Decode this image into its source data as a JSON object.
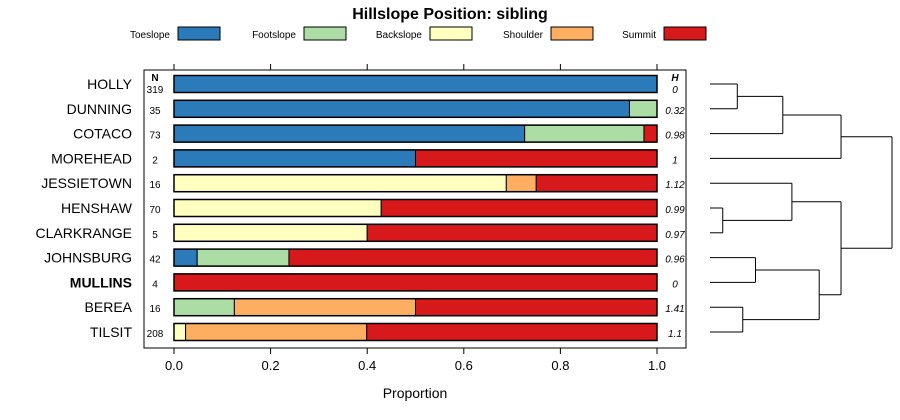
{
  "chart_data": {
    "type": "bar",
    "stacked": true,
    "orientation": "horizontal",
    "title": "Hillslope Position: sibling",
    "xlabel": "Proportion",
    "xlim": [
      0,
      1
    ],
    "xticks": [
      "0.0",
      "0.2",
      "0.4",
      "0.6",
      "0.8",
      "1.0"
    ],
    "n_header": "N",
    "h_header": "H",
    "legend_placement": "top",
    "series": [
      {
        "name": "Toeslope",
        "color": "#2b7bba"
      },
      {
        "name": "Footslope",
        "color": "#abdda4"
      },
      {
        "name": "Backslope",
        "color": "#ffffbf"
      },
      {
        "name": "Shoulder",
        "color": "#fdae61"
      },
      {
        "name": "Summit",
        "color": "#d7191c"
      }
    ],
    "rows": [
      {
        "name": "HOLLY",
        "bold": false,
        "n": "319",
        "h": "0",
        "values": [
          1.0,
          0,
          0,
          0,
          0
        ]
      },
      {
        "name": "DUNNING",
        "bold": false,
        "n": "35",
        "h": "0.32",
        "values": [
          0.943,
          0.057,
          0,
          0,
          0
        ]
      },
      {
        "name": "COTACO",
        "bold": false,
        "n": "73",
        "h": "0.98",
        "values": [
          0.726,
          0.247,
          0,
          0,
          0.027
        ]
      },
      {
        "name": "MOREHEAD",
        "bold": false,
        "n": "2",
        "h": "1",
        "values": [
          0.5,
          0,
          0,
          0,
          0.5
        ]
      },
      {
        "name": "JESSIETOWN",
        "bold": false,
        "n": "16",
        "h": "1.12",
        "values": [
          0,
          0,
          0.688,
          0.062,
          0.25
        ]
      },
      {
        "name": "HENSHAW",
        "bold": false,
        "n": "70",
        "h": "0.99",
        "values": [
          0,
          0,
          0.429,
          0,
          0.571
        ]
      },
      {
        "name": "CLARKRANGE",
        "bold": false,
        "n": "5",
        "h": "0.97",
        "values": [
          0,
          0,
          0.4,
          0,
          0.6
        ]
      },
      {
        "name": "JOHNSBURG",
        "bold": false,
        "n": "42",
        "h": "0.96",
        "values": [
          0.048,
          0.19,
          0,
          0,
          0.762
        ]
      },
      {
        "name": "MULLINS",
        "bold": true,
        "n": "4",
        "h": "0",
        "values": [
          0,
          0,
          0,
          0,
          1.0
        ]
      },
      {
        "name": "BEREA",
        "bold": false,
        "n": "16",
        "h": "1.41",
        "values": [
          0,
          0.125,
          0,
          0.375,
          0.5
        ]
      },
      {
        "name": "TILSIT",
        "bold": false,
        "n": "208",
        "h": "1.1",
        "values": [
          0,
          0,
          0.024,
          0.375,
          0.601
        ]
      }
    ],
    "dendrogram_merges": [
      [
        0,
        1,
        0.15
      ],
      [
        -1,
        2,
        0.4
      ],
      [
        -2,
        3,
        0.72
      ],
      [
        5,
        6,
        0.07
      ],
      [
        4,
        -4,
        0.45
      ],
      [
        7,
        8,
        0.25
      ],
      [
        9,
        10,
        0.18
      ],
      [
        -6,
        -7,
        0.6
      ],
      [
        -5,
        -8,
        0.72
      ],
      [
        -3,
        -9,
        1.0
      ]
    ]
  }
}
